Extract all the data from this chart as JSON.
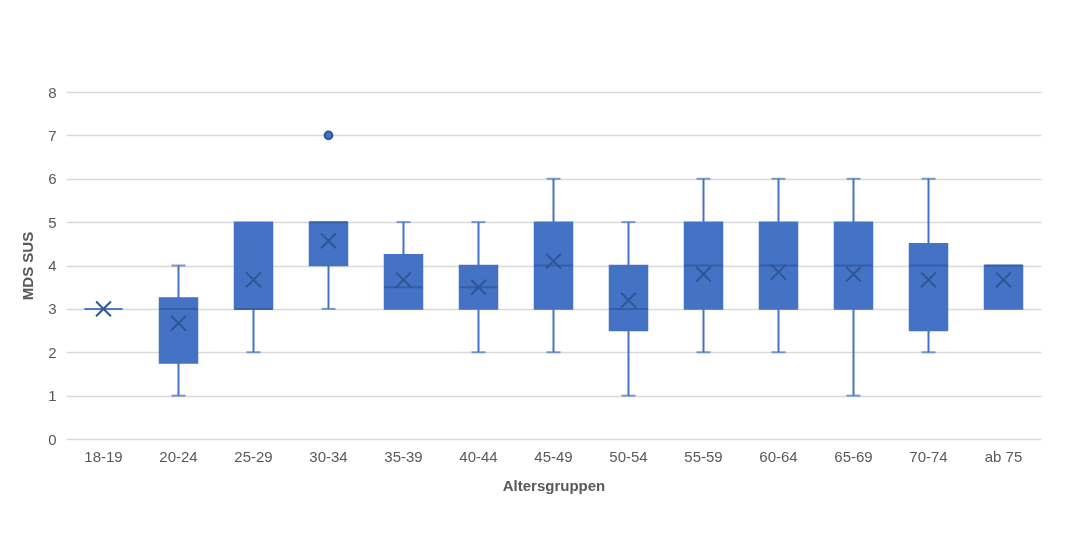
{
  "chart_data": {
    "type": "box",
    "xlabel": "Altersgruppen",
    "ylabel": "MDS SUS",
    "categories": [
      "18-19",
      "20-24",
      "25-29",
      "30-34",
      "35-39",
      "40-44",
      "45-49",
      "50-54",
      "55-59",
      "60-64",
      "65-69",
      "70-74",
      "ab 75"
    ],
    "boxes": [
      {
        "low": 3,
        "q1": 3,
        "median": 3,
        "q3": 3,
        "high": 3,
        "mean": 3
      },
      {
        "low": 1,
        "q1": 1.75,
        "median": 3,
        "q3": 3.25,
        "high": 4,
        "mean": 2.67
      },
      {
        "low": 2,
        "q1": 3,
        "median": 3,
        "q3": 5,
        "high": 5,
        "mean": 3.67
      },
      {
        "low": 3,
        "q1": 4,
        "median": 5,
        "q3": 5,
        "high": 5,
        "mean": 4.57,
        "outliers": [
          7
        ]
      },
      {
        "low": 3,
        "q1": 3,
        "median": 3.5,
        "q3": 4.25,
        "high": 5,
        "mean": 3.67
      },
      {
        "low": 2,
        "q1": 3,
        "median": 3.5,
        "q3": 4,
        "high": 5,
        "mean": 3.5
      },
      {
        "low": 2,
        "q1": 3,
        "median": 4,
        "q3": 5,
        "high": 6,
        "mean": 4.1
      },
      {
        "low": 1,
        "q1": 2.5,
        "median": 3,
        "q3": 4,
        "high": 5,
        "mean": 3.2
      },
      {
        "low": 2,
        "q1": 3,
        "median": 4,
        "q3": 5,
        "high": 6,
        "mean": 3.8
      },
      {
        "low": 2,
        "q1": 3,
        "median": 4,
        "q3": 5,
        "high": 6,
        "mean": 3.85
      },
      {
        "low": 1,
        "q1": 3,
        "median": 4,
        "q3": 5,
        "high": 6,
        "mean": 3.8
      },
      {
        "low": 2,
        "q1": 2.5,
        "median": 4,
        "q3": 4.5,
        "high": 6,
        "mean": 3.67
      },
      {
        "low": 3,
        "q1": 3,
        "median": 4,
        "q3": 4,
        "high": 4,
        "mean": 3.67
      }
    ],
    "color": "#4472c4",
    "ylim": [
      0,
      8
    ],
    "yticks": [
      0,
      1,
      2,
      3,
      4,
      5,
      6,
      7,
      8
    ],
    "grid": "y",
    "marker": "cross"
  }
}
